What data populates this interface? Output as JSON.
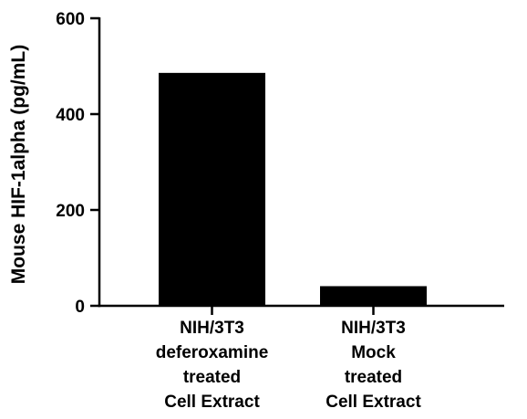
{
  "chart_data": {
    "type": "bar",
    "categories": [
      [
        "NIH/3T3",
        "deferoxamine",
        "treated",
        "Cell Extract"
      ],
      [
        "NIH/3T3",
        "Mock",
        "treated",
        "Cell Extract"
      ]
    ],
    "values": [
      486,
      41
    ],
    "ylabel": "Mouse HIF-1alpha (pg/mL)",
    "xlabel": "",
    "title": "",
    "ylim": [
      0,
      600
    ],
    "yticks": [
      0,
      200,
      400,
      600
    ],
    "grid": false,
    "legend": "none",
    "bar_color": "#000000",
    "axis_color": "#000000"
  }
}
